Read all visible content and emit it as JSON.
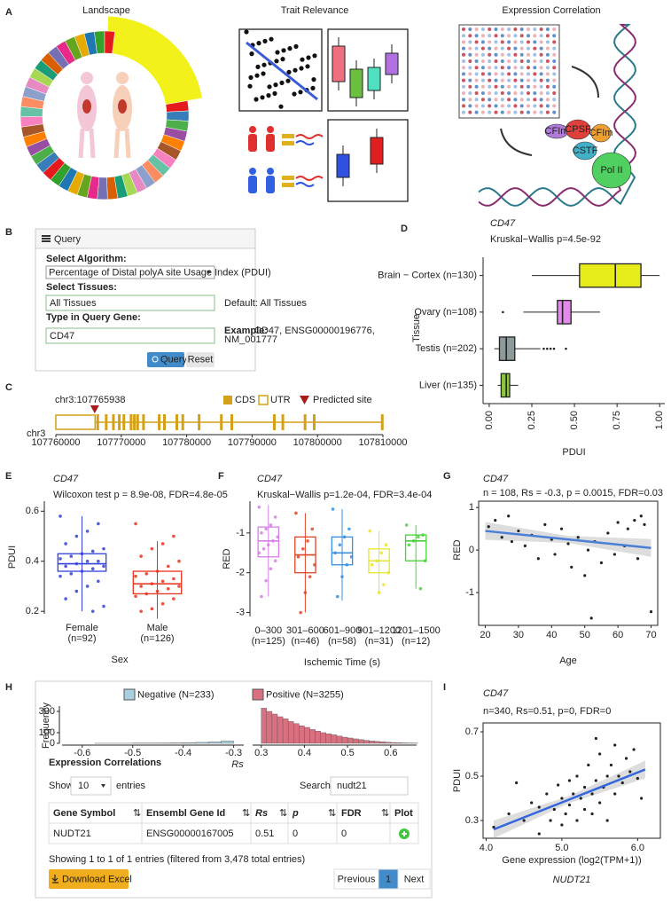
{
  "panel_letters": [
    "A",
    "B",
    "C",
    "D",
    "E",
    "F",
    "G",
    "H",
    "I"
  ],
  "overview": {
    "titles": [
      "Landscape",
      "Trait Relevance",
      "Expression Correlation"
    ],
    "complex_labels": [
      "CFIm",
      "CPSF",
      "CFIm",
      "CSTF",
      "Pol II"
    ]
  },
  "query": {
    "title": "Query",
    "algorithm_label": "Select Algorithm:",
    "algorithm": "Percentage of Distal polyA site Usage Index (PDUI)",
    "tissues_label": "Select Tissues:",
    "tissues": "All Tissues",
    "tissues_hint": "Default: All Tissues",
    "gene_label": "Type in Query Gene:",
    "gene": "CD47",
    "example_label": "Example:",
    "example": [
      "CD47, ENSG00000196776,",
      "NM_001777"
    ],
    "buttons": [
      "Query",
      "Reset"
    ]
  },
  "gene_track": {
    "site_label": "chr3:107765938",
    "site": 107765938,
    "chromosome": "chr3",
    "legend": [
      "CDS",
      "UTR",
      "Predicted site"
    ],
    "xlim": [
      107760000,
      107810000
    ],
    "xticks": [
      107760000,
      107770000,
      107780000,
      107790000,
      107800000,
      107810000
    ],
    "utr": [
      107760000,
      107766000
    ],
    "exons": [
      107766400,
      107767700,
      107768800,
      107769700,
      107770400,
      107771500,
      107772000,
      107772500,
      107773400,
      107775800,
      107776600,
      107778500,
      107779400,
      107781900,
      107785300,
      107786900,
      107793400,
      107794700,
      107798100,
      107799500,
      107809900
    ]
  },
  "chart_data": [
    {
      "type": "box",
      "orientation": "horizontal",
      "title": "CD47",
      "subtitle": "Kruskal−Wallis p=4.5e-92",
      "ylabel": "Tissue",
      "xlabel": "PDUI",
      "categories": [
        "Brain − Cortex (n=130)",
        "Ovary (n=108)",
        "Testis (n=202)",
        "Liver (n=135)"
      ],
      "colors": [
        "#e6ec1a",
        "#e28ae8",
        "#8d9a9c",
        "#8cc63f"
      ],
      "whisker_low": [
        0.25,
        0.2,
        0.03,
        0.05
      ],
      "q1": [
        0.53,
        0.4,
        0.06,
        0.07
      ],
      "median": [
        0.74,
        0.43,
        0.1,
        0.1
      ],
      "q3": [
        0.89,
        0.48,
        0.15,
        0.12
      ],
      "whisker_high": [
        1.0,
        0.65,
        0.3,
        0.17
      ],
      "outliers": [
        [],
        [
          0.08
        ],
        [
          0.32,
          0.34,
          0.36,
          0.38,
          0.45
        ],
        []
      ],
      "xlim": [
        -0.036,
        1.03
      ],
      "xticks": [
        {
          "value": 0,
          "label": "0.00"
        },
        {
          "value": 0.25,
          "label": "0.25"
        },
        {
          "value": 0.5,
          "label": "0.50"
        },
        {
          "value": 0.75,
          "label": "0.75"
        },
        {
          "value": 1,
          "label": "1.00"
        }
      ]
    },
    {
      "type": "box",
      "orientation": "vertical",
      "title": "CD47",
      "subtitle": "Wilcoxon test p = 8.9e-08, FDR=4.8e-05",
      "ylabel": "PDUI",
      "xlabel": "Sex",
      "categories": [
        "Female",
        "Male"
      ],
      "category_notes": [
        "(n=92)",
        "(n=126)"
      ],
      "colors": [
        "#3340e0",
        "#e8321e"
      ],
      "whisker_low": [
        0.2,
        0.17
      ],
      "q1": [
        0.36,
        0.27
      ],
      "median": [
        0.39,
        0.31
      ],
      "q3": [
        0.43,
        0.36
      ],
      "whisker_high": [
        0.58,
        0.48
      ],
      "outliers": [
        [],
        []
      ],
      "points": [
        [
          0.58,
          0.55,
          0.52,
          0.5,
          0.47,
          0.45,
          0.44,
          0.43,
          0.42,
          0.41,
          0.4,
          0.4,
          0.39,
          0.38,
          0.38,
          0.37,
          0.36,
          0.35,
          0.34,
          0.32,
          0.3,
          0.28,
          0.25,
          0.22,
          0.2
        ],
        [
          0.55,
          0.5,
          0.47,
          0.45,
          0.42,
          0.4,
          0.38,
          0.36,
          0.35,
          0.34,
          0.33,
          0.32,
          0.31,
          0.3,
          0.3,
          0.29,
          0.28,
          0.27,
          0.26,
          0.25,
          0.23,
          0.21,
          0.2
        ]
      ],
      "ylim": [
        0.19,
        0.64
      ],
      "yticks": [
        0.2,
        0.4,
        0.6
      ]
    },
    {
      "type": "box",
      "orientation": "vertical",
      "title": "CD47",
      "subtitle": "Kruskal−Wallis p=1.2e-04, FDR=3.4e-04",
      "ylabel": "RED",
      "xlabel": "Ischemic Time (s)",
      "categories": [
        "0–300",
        "301–600",
        "601–900",
        "901–1200",
        "1201–1500"
      ],
      "category_notes": [
        "(n=125)",
        "(n=46)",
        "(n=58)",
        "(n=31)",
        "(n=12)"
      ],
      "colors": [
        "#d77ee8",
        "#e0452a",
        "#3a8fde",
        "#e6e62c",
        "#47d13a"
      ],
      "whisker_low": [
        -2.6,
        -3.0,
        -2.7,
        -2.5,
        -2.4
      ],
      "q1": [
        -1.6,
        -2.0,
        -1.8,
        -2.0,
        -1.7
      ],
      "median": [
        -1.2,
        -1.55,
        -1.5,
        -1.7,
        -1.2
      ],
      "q3": [
        -0.85,
        -1.1,
        -1.1,
        -1.4,
        -1.05
      ],
      "whisker_high": [
        -0.3,
        -0.5,
        -0.4,
        -0.95,
        -0.8
      ],
      "outliers": [
        [],
        [],
        [],
        [],
        []
      ],
      "points": [
        [
          -0.35,
          -0.6,
          -0.8,
          -0.9,
          -1.0,
          -1.1,
          -1.2,
          -1.3,
          -1.4,
          -1.5,
          -1.7,
          -1.9,
          -2.2,
          -2.6
        ],
        [
          -0.5,
          -0.9,
          -1.2,
          -1.4,
          -1.6,
          -1.8,
          -2.1,
          -2.5,
          -3.0
        ],
        [
          -0.4,
          -0.9,
          -1.1,
          -1.3,
          -1.5,
          -1.6,
          -1.8,
          -2.1,
          -2.6
        ],
        [
          -0.95,
          -1.3,
          -1.5,
          -1.7,
          -1.8,
          -2.0,
          -2.3,
          -2.5
        ],
        [
          -0.8,
          -1.05,
          -1.1,
          -1.2,
          -1.3,
          -1.7,
          -2.4
        ]
      ],
      "ylim": [
        -3.1,
        -0.2
      ],
      "yticks": [
        -3,
        -2,
        -1
      ]
    },
    {
      "type": "scatter",
      "title": "CD47",
      "subtitle": "n = 108, Rs = -0.3, p = 0.0015, FDR=0.03",
      "xlabel": "Age",
      "ylabel": "RED",
      "color": "#222222",
      "fit_color": "#4a7fd6",
      "points": [
        [
          21,
          0.55
        ],
        [
          23,
          0.7
        ],
        [
          25,
          0.3
        ],
        [
          27,
          0.8
        ],
        [
          28,
          0.2
        ],
        [
          30,
          0.45
        ],
        [
          32,
          0.1
        ],
        [
          34,
          0.35
        ],
        [
          36,
          -0.2
        ],
        [
          38,
          0.6
        ],
        [
          40,
          0.25
        ],
        [
          41,
          -0.1
        ],
        [
          43,
          0.5
        ],
        [
          45,
          0.15
        ],
        [
          46,
          -0.4
        ],
        [
          48,
          0.3
        ],
        [
          50,
          -0.6
        ],
        [
          51,
          0.0
        ],
        [
          52,
          -1.6
        ],
        [
          53,
          0.2
        ],
        [
          55,
          -0.3
        ],
        [
          57,
          0.4
        ],
        [
          59,
          -0.1
        ],
        [
          60,
          0.65
        ],
        [
          62,
          0.1
        ],
        [
          63,
          0.5
        ],
        [
          65,
          0.7
        ],
        [
          66,
          -0.2
        ],
        [
          67,
          0.8
        ],
        [
          68,
          0.6
        ],
        [
          70,
          -1.45
        ]
      ],
      "fit": [
        [
          20,
          0.45
        ],
        [
          70,
          0.05
        ]
      ],
      "xlim": [
        18,
        72
      ],
      "ylim": [
        -1.77,
        1.15
      ],
      "xticks": [
        20,
        30,
        40,
        50,
        60,
        70
      ],
      "yticks": [
        -1,
        0,
        1
      ]
    },
    {
      "type": "histogram",
      "ylabel": "Frequency",
      "xlabel": "Rs",
      "ylim": [
        0,
        350
      ],
      "yticks": [
        0,
        100,
        300
      ],
      "series": [
        {
          "name": "Negative (N=233)",
          "color": "#a8d0e0",
          "xlim": [
            -0.64,
            -0.28
          ],
          "xticks": [
            -0.6,
            -0.5,
            -0.4,
            -0.3
          ],
          "bins": [
            -0.6,
            -0.575,
            -0.55,
            -0.525,
            -0.5,
            -0.475,
            -0.45,
            -0.425,
            -0.4,
            -0.375,
            -0.35,
            -0.325,
            -0.3
          ],
          "values": [
            0,
            1,
            1,
            1,
            2,
            2,
            3,
            4,
            6,
            9,
            14,
            22
          ]
        },
        {
          "name": "Positive (N=3255)",
          "color": "#d9707f",
          "xlim": [
            0.28,
            0.66
          ],
          "xticks": [
            0.3,
            0.4,
            0.5,
            0.6
          ],
          "bins": [
            0.3,
            0.3125,
            0.325,
            0.3375,
            0.35,
            0.3625,
            0.375,
            0.3875,
            0.4,
            0.4125,
            0.425,
            0.4375,
            0.45,
            0.4625,
            0.475,
            0.4875,
            0.5,
            0.5125,
            0.525,
            0.5375,
            0.55,
            0.5625,
            0.575,
            0.5875,
            0.6,
            0.6125,
            0.625,
            0.6375,
            0.65,
            0.6625
          ],
          "values": [
            330,
            300,
            275,
            250,
            230,
            205,
            185,
            165,
            150,
            130,
            115,
            100,
            90,
            80,
            68,
            58,
            50,
            42,
            35,
            28,
            22,
            18,
            14,
            10,
            8,
            6,
            4,
            3,
            2
          ]
        }
      ]
    },
    {
      "type": "scatter",
      "title": "CD47",
      "subtitle": "n=340, Rs=0.51, p=0, FDR=0",
      "xlabel": "Gene expression (log2(TPM+1))",
      "xlabel_2": "NUDT21",
      "ylabel": "PDUI",
      "color": "#222222",
      "fit_color": "#3366dd",
      "points": [
        [
          4.1,
          0.27
        ],
        [
          4.3,
          0.33
        ],
        [
          4.4,
          0.47
        ],
        [
          4.5,
          0.3
        ],
        [
          4.6,
          0.38
        ],
        [
          4.7,
          0.24
        ],
        [
          4.7,
          0.36
        ],
        [
          4.8,
          0.42
        ],
        [
          4.85,
          0.3
        ],
        [
          4.9,
          0.35
        ],
        [
          4.95,
          0.46
        ],
        [
          5.0,
          0.28
        ],
        [
          5.0,
          0.4
        ],
        [
          5.05,
          0.33
        ],
        [
          5.1,
          0.48
        ],
        [
          5.1,
          0.37
        ],
        [
          5.15,
          0.42
        ],
        [
          5.2,
          0.3
        ],
        [
          5.2,
          0.5
        ],
        [
          5.25,
          0.4
        ],
        [
          5.3,
          0.45
        ],
        [
          5.3,
          0.35
        ],
        [
          5.35,
          0.55
        ],
        [
          5.4,
          0.42
        ],
        [
          5.4,
          0.33
        ],
        [
          5.45,
          0.48
        ],
        [
          5.45,
          0.67
        ],
        [
          5.5,
          0.38
        ],
        [
          5.5,
          0.6
        ],
        [
          5.55,
          0.45
        ],
        [
          5.6,
          0.5
        ],
        [
          5.6,
          0.3
        ],
        [
          5.65,
          0.55
        ],
        [
          5.7,
          0.42
        ],
        [
          5.7,
          0.64
        ],
        [
          5.75,
          0.5
        ],
        [
          5.8,
          0.47
        ],
        [
          5.85,
          0.58
        ],
        [
          5.9,
          0.52
        ],
        [
          5.95,
          0.62
        ],
        [
          6.0,
          0.49
        ],
        [
          6.05,
          0.4
        ]
      ],
      "fit": [
        [
          4.1,
          0.26
        ],
        [
          6.1,
          0.53
        ]
      ],
      "xlim": [
        3.96,
        6.3
      ],
      "ylim": [
        0.22,
        0.74
      ],
      "xticks": [
        {
          "value": 4,
          "label": "4.0"
        },
        {
          "value": 5,
          "label": "5.0"
        },
        {
          "value": 6,
          "label": "6.0"
        }
      ],
      "yticks": [
        0.3,
        0.5,
        0.7
      ]
    }
  ],
  "table": {
    "section_title": "Expression Correlations",
    "show": "Show",
    "length": "10",
    "entries": "entries",
    "search_label": "Search:",
    "search": "nudt21",
    "columns": [
      "Gene Symbol",
      "Ensembl Gene Id",
      "Rs",
      "p",
      "FDR",
      "Plot"
    ],
    "rows": [
      [
        "NUDT21",
        "ENSG00000167005",
        "0.51",
        "0",
        "0"
      ]
    ],
    "info": "Showing 1 to 1 of 1 entries (filtered from 3,478 total entries)",
    "download": "Download Excel",
    "pagination": [
      "Previous",
      "1",
      "Next"
    ]
  }
}
